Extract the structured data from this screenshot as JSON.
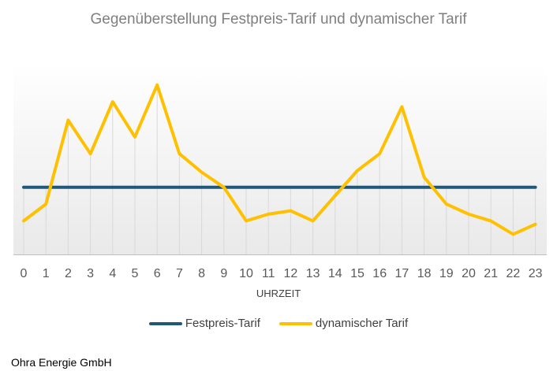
{
  "chart_data": {
    "type": "line",
    "title": "Gegenüberstellung Festpreis-Tarif und dynamischer Tarif",
    "xlabel": "UHRZEIT",
    "ylabel": "",
    "x": [
      "0",
      "1",
      "2",
      "3",
      "4",
      "5",
      "6",
      "7",
      "8",
      "9",
      "10",
      "11",
      "12",
      "13",
      "14",
      "15",
      "16",
      "17",
      "18",
      "19",
      "20",
      "21",
      "22",
      "23"
    ],
    "ylim": [
      0,
      100
    ],
    "grid": "vertical",
    "legend_position": "bottom",
    "series": [
      {
        "name": "Festpreis-Tarif",
        "color": "#1f5878",
        "values": [
          40,
          40,
          40,
          40,
          40,
          40,
          40,
          40,
          40,
          40,
          40,
          40,
          40,
          40,
          40,
          40,
          40,
          40,
          40,
          40,
          40,
          40,
          40,
          40
        ]
      },
      {
        "name": "dynamischer Tarif",
        "color": "#ffc000",
        "values": [
          20,
          30,
          80,
          60,
          91,
          70,
          101,
          60,
          49,
          40,
          20,
          24,
          26,
          20,
          35,
          50,
          60,
          88,
          46,
          30,
          24,
          20,
          12,
          18
        ]
      }
    ]
  },
  "footer": {
    "source": "Ohra Energie GmbH"
  }
}
